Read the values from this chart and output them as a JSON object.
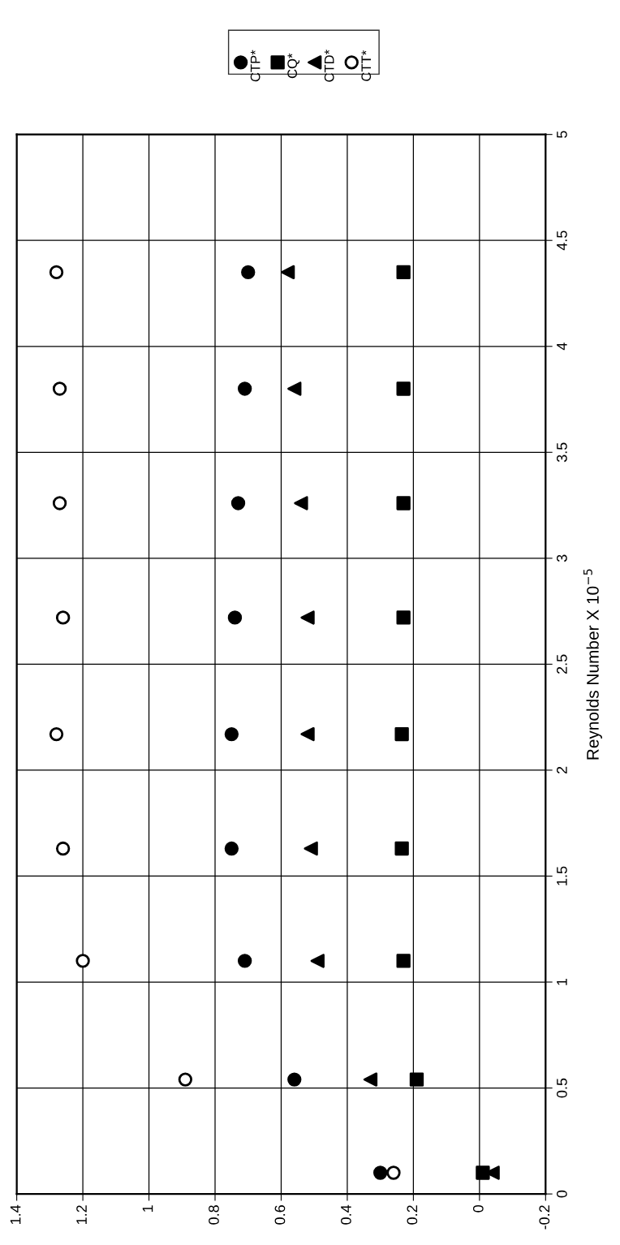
{
  "chart_data": {
    "type": "scatter",
    "ylabel": "Reynolds Number X 10$^{−5}$",
    "xlim": [
      1.4,
      -0.2
    ],
    "xticks": [
      1.4,
      1.2,
      1,
      0.8,
      0.6,
      0.4,
      0.2,
      0,
      -0.2
    ],
    "ylim": [
      0,
      5
    ],
    "yticks": [
      0,
      0.5,
      1,
      1.5,
      2,
      2.5,
      3,
      3.5,
      4,
      4.5,
      5
    ],
    "grid": true,
    "legend": "top",
    "series": [
      {
        "name": "CTP*",
        "color": "#000000",
        "marker": "circle",
        "x": [
          0.3,
          0.56,
          0.71,
          0.75,
          0.75,
          0.74,
          0.73,
          0.71,
          0.7
        ],
        "values": [
          0.1,
          0.54,
          1.1,
          1.63,
          2.17,
          2.72,
          3.26,
          3.8,
          4.35
        ]
      },
      {
        "name": "CQ*",
        "color": "#000000",
        "marker": "square",
        "x": [
          -0.01,
          0.19,
          0.23,
          0.235,
          0.235,
          0.23,
          0.23,
          0.23,
          0.23
        ],
        "values": [
          0.1,
          0.54,
          1.1,
          1.63,
          2.17,
          2.72,
          3.26,
          3.8,
          4.35
        ]
      },
      {
        "name": "CTD*",
        "color": "#000000",
        "marker": "triangle",
        "x": [
          -0.04,
          0.33,
          0.49,
          0.51,
          0.52,
          0.52,
          0.54,
          0.56,
          0.58
        ],
        "values": [
          0.1,
          0.54,
          1.1,
          1.63,
          2.17,
          2.72,
          3.26,
          3.8,
          4.35
        ]
      },
      {
        "name": "CTT*",
        "color": "#ffffff",
        "marker": "circle",
        "x": [
          0.26,
          0.89,
          1.2,
          1.26,
          1.28,
          1.26,
          1.27,
          1.27,
          1.28
        ],
        "values": [
          0.1,
          0.54,
          1.1,
          1.63,
          2.17,
          2.72,
          3.26,
          3.8,
          4.35
        ]
      }
    ]
  }
}
